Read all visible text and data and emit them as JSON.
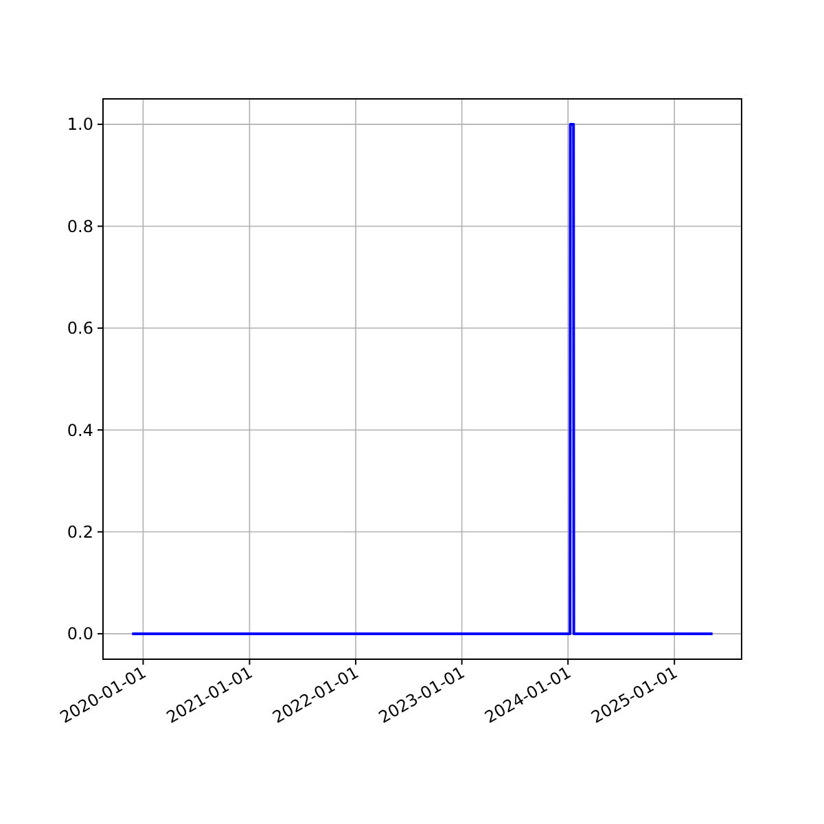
{
  "chart_data": {
    "type": "line",
    "x": [
      "2019-11-24",
      "2024-01-08",
      "2024-01-09",
      "2024-01-20",
      "2024-01-21",
      "2025-05-12"
    ],
    "series": [
      {
        "color": "#0000ff",
        "values": [
          0,
          0,
          1,
          1,
          0,
          0
        ]
      }
    ],
    "xlim": [
      "2019-08-16",
      "2025-08-20"
    ],
    "xticks": [
      {
        "value": "2020-01-01",
        "label": "2020-01-01"
      },
      {
        "value": "2021-01-01",
        "label": "2021-01-01"
      },
      {
        "value": "2022-01-01",
        "label": "2022-01-01"
      },
      {
        "value": "2023-01-01",
        "label": "2023-01-01"
      },
      {
        "value": "2024-01-01",
        "label": "2024-01-01"
      },
      {
        "value": "2025-01-01",
        "label": "2025-01-01"
      }
    ],
    "ylim": [
      -0.05,
      1.05
    ],
    "yticks": [
      {
        "value": 0,
        "label": "0.0"
      },
      {
        "value": 0.2,
        "label": "0.2"
      },
      {
        "value": 0.4,
        "label": "0.4"
      },
      {
        "value": 0.6,
        "label": "0.6"
      },
      {
        "value": 0.8,
        "label": "0.8"
      },
      {
        "value": 1,
        "label": "1.0"
      }
    ],
    "grid": true
  }
}
